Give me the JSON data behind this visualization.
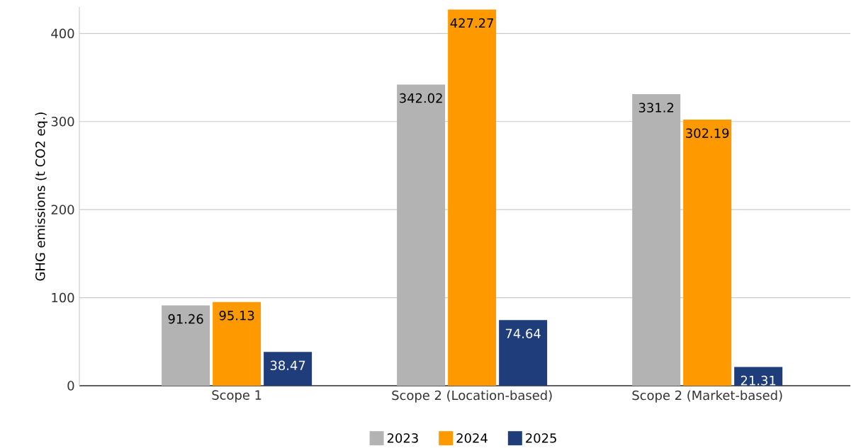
{
  "chart_data": {
    "type": "bar",
    "ylabel": "GHG emissions (t CO2 eq.)",
    "categories": [
      "Scope 1",
      "Scope 2 (Location-based)",
      "Scope 2 (Market-based)"
    ],
    "series": [
      {
        "name": "2023",
        "color": "#b3b3b3",
        "values": [
          91.26,
          342.02,
          331.2
        ]
      },
      {
        "name": "2024",
        "color": "#ff9900",
        "values": [
          95.13,
          427.27,
          302.19
        ]
      },
      {
        "name": "2025",
        "color": "#1f3d7a",
        "values": [
          38.47,
          74.64,
          21.31
        ]
      }
    ],
    "ylim": [
      0,
      430
    ],
    "yticks": [
      0,
      100,
      200,
      300,
      400
    ],
    "grid": "y",
    "legend": "bottom",
    "data_labels": true
  }
}
